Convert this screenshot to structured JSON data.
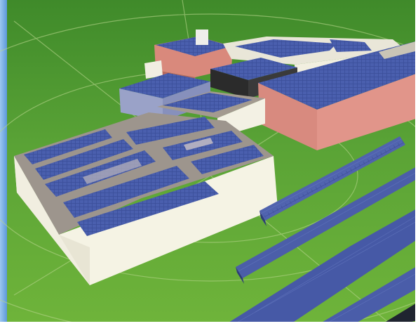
{
  "scene": {
    "description_tags": [
      "solar-campus-render",
      "rooftop-pv",
      "ground-mounted-pv-rows"
    ],
    "colors": {
      "grass_light": "#6fb43a",
      "grass_dark": "#3f7f24",
      "grid_line": "#b9d889",
      "sky_edge": "#5aa0e4",
      "wall_white": "#f4f1e2",
      "wall_shadow": "#d9d5c0",
      "roof_gray": "#9c948c",
      "panel_blue": "#3b4f9a",
      "panel_blue_light": "#5669b4",
      "brick": "#d9897c",
      "brick_dark": "#b9685e",
      "dark_block": "#2a2a2a",
      "lilac_wall": "#9aa2c8"
    }
  }
}
